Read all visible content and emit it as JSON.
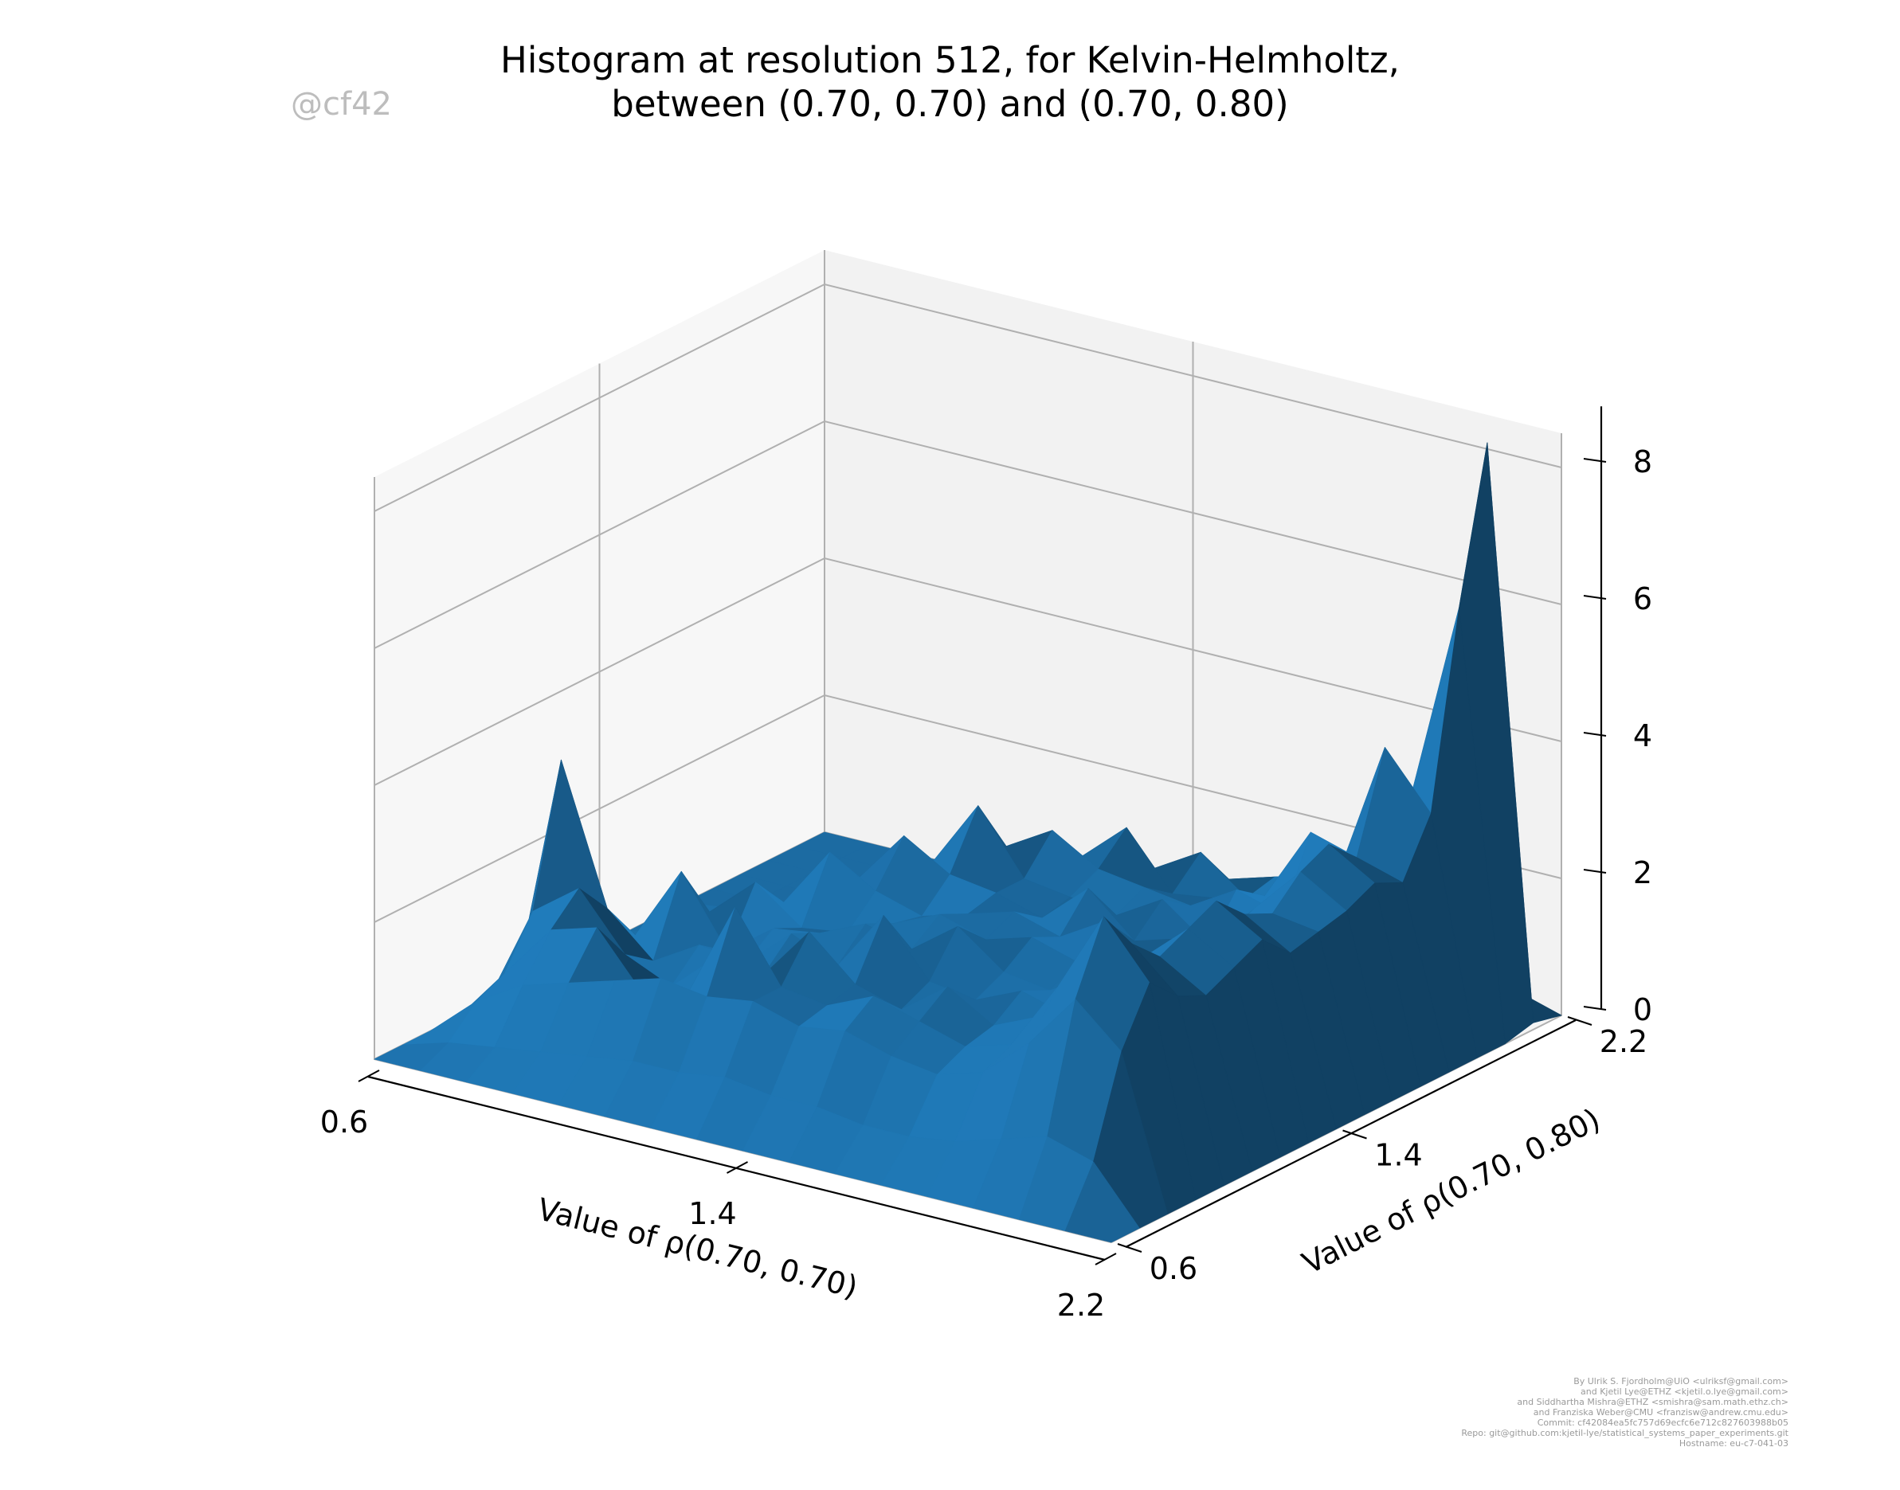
{
  "title": {
    "line1": "Histogram at resolution 512, for Kelvin-Helmholtz,",
    "line2": "between (0.70, 0.70) and (0.70, 0.80)"
  },
  "watermark": "@cf42",
  "credits": [
    "By Ulrik S. Fjordholm@UiO <ulriksf@gmail.com>",
    "and Kjetil Lye@ETHZ <kjetil.o.lye@gmail.com>",
    "and Siddhartha Mishra@ETHZ <smishra@sam.math.ethz.ch>",
    "and Franziska Weber@CMU <franzisw@andrew.cmu.edu>",
    "Commit: cf42084ea5fc757d69ecfc6e712c827603988b05",
    "Repo: git@github.com:kjetil-lye/statistical_systems_paper_experiments.git",
    "Hostname: eu-c7-041-03"
  ],
  "colors": {
    "surface": "#1f77b4",
    "pane": "#f2f2f2",
    "grid": "#b0b0b0"
  },
  "chart_data": {
    "type": "surface",
    "title": "Histogram at resolution 512, for Kelvin-Helmholtz, between (0.70, 0.70) and (0.70, 0.80)",
    "xlabel": "Value of ρ(0.70, 0.70)",
    "ylabel": "Value of ρ(0.70, 0.80)",
    "zlabel": "",
    "xlim": [
      0.6,
      2.2
    ],
    "ylim": [
      0.6,
      2.2
    ],
    "zlim": [
      0,
      8
    ],
    "x_ticks": [
      "0.6",
      "1.4",
      "2.2"
    ],
    "y_ticks": [
      "0.6",
      "1.4",
      "2.2"
    ],
    "z_ticks": [
      "0",
      "2",
      "4",
      "6",
      "8"
    ],
    "grid": true,
    "x": [
      0.6,
      0.7,
      0.8,
      0.9,
      1.0,
      1.1,
      1.2,
      1.3,
      1.4,
      1.5,
      1.6,
      1.7,
      1.8,
      1.9,
      2.0,
      2.1,
      2.2
    ],
    "y": [
      0.6,
      0.7,
      0.8,
      0.9,
      1.0,
      1.1,
      1.2,
      1.3,
      1.4,
      1.5,
      1.6,
      1.7,
      1.8,
      1.9,
      2.0,
      2.1,
      2.2
    ],
    "z": [
      [
        0,
        0,
        0,
        0,
        0,
        0,
        0,
        0,
        0,
        0,
        0,
        0,
        0,
        0,
        0,
        0,
        0
      ],
      [
        0,
        0.2,
        0.6,
        0.8,
        1.5,
        3.5,
        1.2,
        0.5,
        0.3,
        0.2,
        0.1,
        0.1,
        0,
        0,
        0,
        0,
        0
      ],
      [
        0,
        0.3,
        1.0,
        1.6,
        2.0,
        1.5,
        0.9,
        0.6,
        0.4,
        0.3,
        0.2,
        0.1,
        0.1,
        0,
        0,
        0,
        0
      ],
      [
        0,
        0.4,
        1.2,
        1.8,
        1.2,
        0.9,
        2.0,
        1.2,
        0.8,
        0.5,
        0.4,
        0.3,
        0.2,
        0.1,
        0,
        0,
        0
      ],
      [
        0,
        0.5,
        1.4,
        1.0,
        0.9,
        1.3,
        1.0,
        1.8,
        1.3,
        1.0,
        0.7,
        0.5,
        0.4,
        0.3,
        0.2,
        0,
        0
      ],
      [
        0,
        0.6,
        1.6,
        1.2,
        1.5,
        1.2,
        1.5,
        1.3,
        2.2,
        1.6,
        1.2,
        1.0,
        0.8,
        0.6,
        0.3,
        0.1,
        0
      ],
      [
        0,
        0.6,
        1.5,
        2.6,
        1.4,
        1.8,
        1.6,
        1.4,
        1.8,
        2.4,
        1.8,
        1.4,
        1.1,
        0.9,
        0.5,
        0.2,
        0
      ],
      [
        0,
        0.7,
        1.6,
        1.6,
        2.2,
        1.5,
        1.9,
        1.7,
        1.6,
        2.0,
        2.8,
        2.0,
        1.6,
        1.2,
        0.8,
        0.3,
        0
      ],
      [
        0,
        0.6,
        1.4,
        1.5,
        1.6,
        2.4,
        1.7,
        2.0,
        1.8,
        1.9,
        1.9,
        2.4,
        1.8,
        1.3,
        1.0,
        0.4,
        0
      ],
      [
        0,
        0.6,
        1.5,
        1.8,
        1.4,
        1.6,
        2.2,
        1.8,
        2.0,
        1.7,
        1.8,
        2.0,
        2.4,
        1.6,
        1.2,
        0.5,
        0
      ],
      [
        0,
        0.5,
        1.3,
        1.6,
        1.9,
        1.5,
        1.7,
        2.0,
        1.8,
        2.3,
        1.7,
        1.9,
        1.6,
        2.0,
        1.4,
        0.6,
        0
      ],
      [
        0,
        0.5,
        1.2,
        1.4,
        1.5,
        1.8,
        1.6,
        1.8,
        2.2,
        1.7,
        2.1,
        1.8,
        1.7,
        1.5,
        1.6,
        0.7,
        0
      ],
      [
        0,
        0.6,
        1.4,
        1.6,
        1.8,
        1.6,
        2.0,
        1.7,
        1.6,
        1.9,
        1.6,
        2.2,
        1.9,
        1.6,
        1.8,
        0.9,
        0
      ],
      [
        0,
        0.8,
        2.0,
        2.6,
        2.2,
        2.0,
        2.4,
        2.2,
        2.0,
        2.1,
        2.3,
        2.0,
        3.0,
        2.2,
        2.0,
        1.0,
        0
      ],
      [
        0,
        1.0,
        2.8,
        3.8,
        3.2,
        2.8,
        3.0,
        3.2,
        2.8,
        2.6,
        3.0,
        3.2,
        2.8,
        4.2,
        3.4,
        1.4,
        0
      ],
      [
        0,
        0.8,
        2.2,
        3.0,
        2.6,
        2.4,
        2.6,
        2.8,
        2.4,
        2.5,
        2.6,
        2.8,
        2.6,
        3.4,
        6.2,
        8.4,
        0.2
      ],
      [
        0,
        0,
        0,
        0,
        0,
        0,
        0,
        0,
        0,
        0,
        0,
        0,
        0,
        0,
        0,
        0.1,
        0
      ]
    ],
    "z_orientation": "z[i][j] = value at x[i], y[j]"
  }
}
